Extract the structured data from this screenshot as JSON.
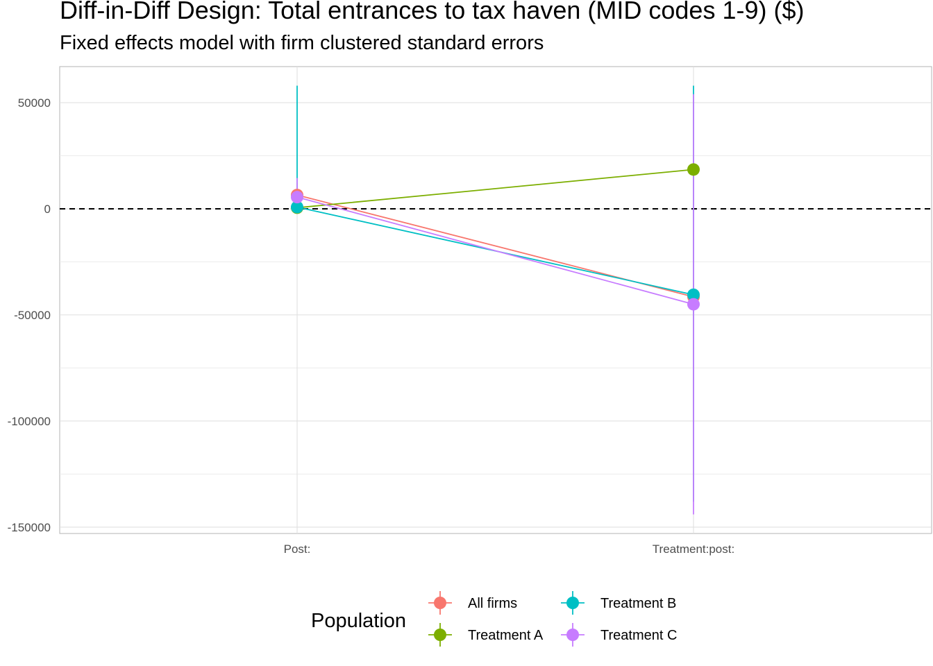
{
  "chart_data": {
    "type": "scatter",
    "title": "Diff-in-Diff Design: Total entrances to tax haven (MID codes 1-9)  ($)",
    "subtitle": "Fixed effects model with firm clustered standard errors",
    "categories": [
      "Post:",
      "Treatment:post:"
    ],
    "ylim": [
      -153000,
      67000
    ],
    "yticks": [
      50000,
      0,
      -50000,
      -100000,
      -150000
    ],
    "ytick_labels": [
      "50000",
      "0",
      "-50000",
      "-100000",
      "-150000"
    ],
    "reference_line": 0,
    "grid": true,
    "series": [
      {
        "name": "All firms",
        "color": "#F8766D",
        "values": [
          6500,
          -41500
        ],
        "ci_low": [
          1000,
          -41500
        ],
        "ci_high": [
          12000,
          -41500
        ]
      },
      {
        "name": "Treatment A",
        "color": "#7CAE00",
        "values": [
          500,
          18500
        ],
        "ci_low": [
          500,
          18500
        ],
        "ci_high": [
          500,
          18500
        ]
      },
      {
        "name": "Treatment B",
        "color": "#00BFC4",
        "values": [
          800,
          -40500
        ],
        "ci_low": [
          800,
          -138000
        ],
        "ci_high": [
          58000,
          58000
        ]
      },
      {
        "name": "Treatment C",
        "color": "#C77CFF",
        "values": [
          5500,
          -45000
        ],
        "ci_low": [
          -2000,
          -144000
        ],
        "ci_high": [
          14500,
          54000
        ]
      }
    ],
    "legend": {
      "title": "Population",
      "position": "bottom"
    }
  }
}
